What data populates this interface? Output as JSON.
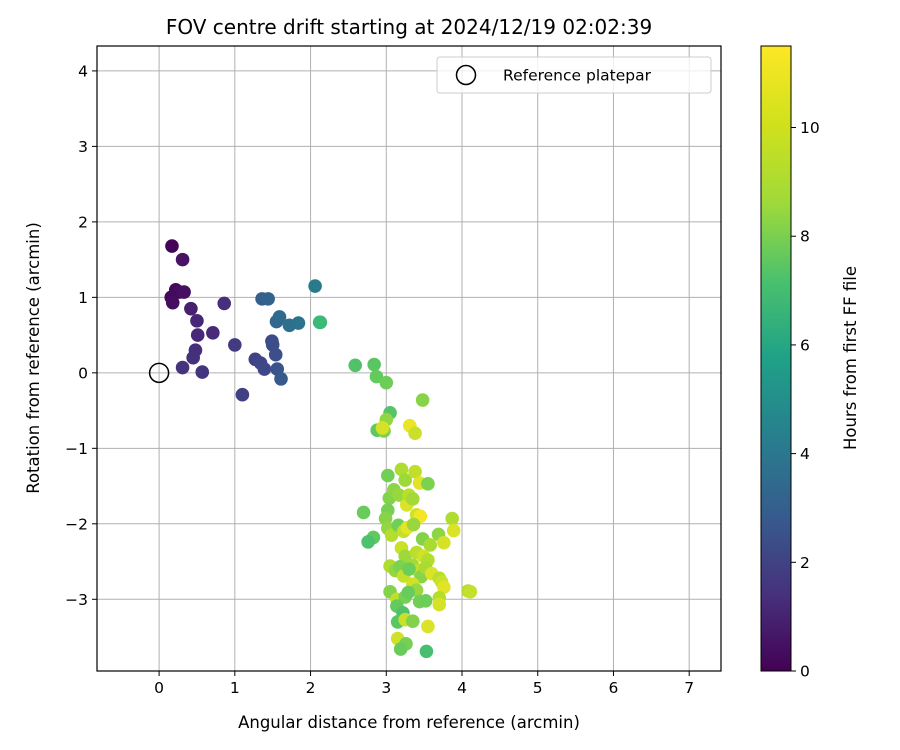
{
  "chart_data": {
    "type": "scatter",
    "title": "FOV centre drift starting at 2024/12/19 02:02:39",
    "xlabel": "Angular distance from reference (arcmin)",
    "ylabel": "Rotation from reference (arcmin)",
    "xlim": [
      -0.82,
      7.42
    ],
    "ylim": [
      -3.95,
      4.33
    ],
    "xticks": [
      0,
      1,
      2,
      3,
      4,
      5,
      6,
      7
    ],
    "yticks": [
      -3,
      -2,
      -1,
      0,
      1,
      2,
      3,
      4
    ],
    "grid": true,
    "legend": {
      "position": "top-right",
      "entries": [
        "Reference platepar"
      ]
    },
    "reference": {
      "x": 0,
      "y": 0
    },
    "colorbar": {
      "label": "Hours from first FF file",
      "colormap": "viridis",
      "min": 0,
      "max": 11.5,
      "ticks": [
        0,
        2,
        4,
        6,
        8,
        10
      ]
    },
    "points": [
      {
        "x": 0.17,
        "y": 1.68,
        "c": 0.1
      },
      {
        "x": 0.31,
        "y": 1.5,
        "c": 0.6
      },
      {
        "x": 0.22,
        "y": 1.1,
        "c": 0.2
      },
      {
        "x": 0.27,
        "y": 1.07,
        "c": 0.4
      },
      {
        "x": 0.33,
        "y": 1.07,
        "c": 0.5
      },
      {
        "x": 0.16,
        "y": 1.0,
        "c": 0.3
      },
      {
        "x": 0.18,
        "y": 0.93,
        "c": 0.4
      },
      {
        "x": 0.42,
        "y": 0.85,
        "c": 1.0
      },
      {
        "x": 0.86,
        "y": 0.92,
        "c": 1.6
      },
      {
        "x": 0.5,
        "y": 0.69,
        "c": 1.2
      },
      {
        "x": 0.51,
        "y": 0.5,
        "c": 1.3
      },
      {
        "x": 0.71,
        "y": 0.53,
        "c": 1.4
      },
      {
        "x": 0.48,
        "y": 0.3,
        "c": 1.5
      },
      {
        "x": 0.45,
        "y": 0.2,
        "c": 1.6
      },
      {
        "x": 0.31,
        "y": 0.07,
        "c": 1.7
      },
      {
        "x": 0.57,
        "y": 0.01,
        "c": 1.8
      },
      {
        "x": 1.0,
        "y": 0.37,
        "c": 2.0
      },
      {
        "x": 1.1,
        "y": -0.29,
        "c": 2.2
      },
      {
        "x": 1.27,
        "y": 0.18,
        "c": 2.3
      },
      {
        "x": 1.34,
        "y": 0.13,
        "c": 2.4
      },
      {
        "x": 1.39,
        "y": 0.05,
        "c": 2.5
      },
      {
        "x": 1.49,
        "y": 0.42,
        "c": 2.6
      },
      {
        "x": 1.5,
        "y": 0.37,
        "c": 2.7
      },
      {
        "x": 1.54,
        "y": 0.24,
        "c": 2.8
      },
      {
        "x": 1.56,
        "y": 0.05,
        "c": 3.0
      },
      {
        "x": 1.61,
        "y": -0.08,
        "c": 3.2
      },
      {
        "x": 1.36,
        "y": 0.98,
        "c": 3.5
      },
      {
        "x": 1.44,
        "y": 0.98,
        "c": 3.6
      },
      {
        "x": 1.55,
        "y": 0.68,
        "c": 3.8
      },
      {
        "x": 1.59,
        "y": 0.74,
        "c": 3.9
      },
      {
        "x": 1.72,
        "y": 0.63,
        "c": 4.2
      },
      {
        "x": 1.84,
        "y": 0.66,
        "c": 4.4
      },
      {
        "x": 2.06,
        "y": 1.15,
        "c": 4.7
      },
      {
        "x": 2.12,
        "y": 0.67,
        "c": 7.6
      },
      {
        "x": 2.13,
        "y": 0.67,
        "c": 7.8
      },
      {
        "x": 2.59,
        "y": 0.1,
        "c": 8.3
      },
      {
        "x": 2.84,
        "y": 0.11,
        "c": 8.5
      },
      {
        "x": 2.87,
        "y": -0.05,
        "c": 8.7
      },
      {
        "x": 3.0,
        "y": -0.13,
        "c": 8.9
      },
      {
        "x": 3.05,
        "y": -0.53,
        "c": 8.4
      },
      {
        "x": 2.88,
        "y": -0.76,
        "c": 8.6
      },
      {
        "x": 2.97,
        "y": -0.77,
        "c": 9.2
      },
      {
        "x": 3.0,
        "y": -0.62,
        "c": 9.6
      },
      {
        "x": 2.95,
        "y": -0.73,
        "c": 10.8
      },
      {
        "x": 3.31,
        "y": -0.7,
        "c": 11.2
      },
      {
        "x": 3.38,
        "y": -0.8,
        "c": 10.6
      },
      {
        "x": 3.48,
        "y": -0.36,
        "c": 9.4
      },
      {
        "x": 3.02,
        "y": -1.36,
        "c": 9.0
      },
      {
        "x": 3.04,
        "y": -1.66,
        "c": 9.3
      },
      {
        "x": 3.1,
        "y": -1.55,
        "c": 9.5
      },
      {
        "x": 3.2,
        "y": -1.28,
        "c": 10.1
      },
      {
        "x": 3.25,
        "y": -1.42,
        "c": 9.8
      },
      {
        "x": 3.38,
        "y": -1.31,
        "c": 10.4
      },
      {
        "x": 3.44,
        "y": -1.46,
        "c": 11.0
      },
      {
        "x": 3.55,
        "y": -1.47,
        "c": 9.2
      },
      {
        "x": 3.17,
        "y": -1.62,
        "c": 9.7
      },
      {
        "x": 3.27,
        "y": -1.75,
        "c": 10.9
      },
      {
        "x": 3.3,
        "y": -1.62,
        "c": 10.3
      },
      {
        "x": 3.35,
        "y": -1.67,
        "c": 9.9
      },
      {
        "x": 3.4,
        "y": -1.88,
        "c": 10.7
      },
      {
        "x": 3.45,
        "y": -1.9,
        "c": 11.3
      },
      {
        "x": 3.02,
        "y": -1.82,
        "c": 9.1
      },
      {
        "x": 2.99,
        "y": -1.93,
        "c": 9.4
      },
      {
        "x": 2.7,
        "y": -1.85,
        "c": 8.8
      },
      {
        "x": 2.83,
        "y": -2.18,
        "c": 8.6
      },
      {
        "x": 2.76,
        "y": -2.24,
        "c": 8.2
      },
      {
        "x": 3.02,
        "y": -2.06,
        "c": 9.6
      },
      {
        "x": 3.07,
        "y": -2.15,
        "c": 10.2
      },
      {
        "x": 3.16,
        "y": -2.02,
        "c": 9.0
      },
      {
        "x": 3.23,
        "y": -2.1,
        "c": 10.5
      },
      {
        "x": 3.28,
        "y": -2.05,
        "c": 11.1
      },
      {
        "x": 3.36,
        "y": -2.01,
        "c": 9.7
      },
      {
        "x": 3.48,
        "y": -2.2,
        "c": 9.3
      },
      {
        "x": 3.58,
        "y": -2.28,
        "c": 10.0
      },
      {
        "x": 3.69,
        "y": -2.14,
        "c": 9.5
      },
      {
        "x": 3.76,
        "y": -2.25,
        "c": 10.8
      },
      {
        "x": 3.87,
        "y": -1.93,
        "c": 10.1
      },
      {
        "x": 3.89,
        "y": -2.09,
        "c": 10.9
      },
      {
        "x": 3.2,
        "y": -2.32,
        "c": 10.6
      },
      {
        "x": 3.25,
        "y": -2.43,
        "c": 9.8
      },
      {
        "x": 3.4,
        "y": -2.38,
        "c": 10.3
      },
      {
        "x": 3.49,
        "y": -2.43,
        "c": 10.7
      },
      {
        "x": 3.55,
        "y": -2.48,
        "c": 10.2
      },
      {
        "x": 3.35,
        "y": -2.55,
        "c": 9.9
      },
      {
        "x": 3.42,
        "y": -2.62,
        "c": 10.4
      },
      {
        "x": 3.05,
        "y": -2.56,
        "c": 10.1
      },
      {
        "x": 3.12,
        "y": -2.62,
        "c": 9.6
      },
      {
        "x": 3.18,
        "y": -2.57,
        "c": 9.2
      },
      {
        "x": 3.23,
        "y": -2.69,
        "c": 10.5
      },
      {
        "x": 3.3,
        "y": -2.6,
        "c": 8.9
      },
      {
        "x": 3.46,
        "y": -2.7,
        "c": 9.4
      },
      {
        "x": 3.52,
        "y": -2.58,
        "c": 10.0
      },
      {
        "x": 3.6,
        "y": -2.66,
        "c": 10.9
      },
      {
        "x": 3.7,
        "y": -2.72,
        "c": 10.3
      },
      {
        "x": 3.73,
        "y": -2.77,
        "c": 10.6
      },
      {
        "x": 3.76,
        "y": -2.84,
        "c": 11.0
      },
      {
        "x": 3.35,
        "y": -2.8,
        "c": 10.7
      },
      {
        "x": 3.4,
        "y": -2.88,
        "c": 9.7
      },
      {
        "x": 3.05,
        "y": -2.9,
        "c": 9.3
      },
      {
        "x": 3.14,
        "y": -3.0,
        "c": 10.4
      },
      {
        "x": 3.25,
        "y": -2.97,
        "c": 9.1
      },
      {
        "x": 3.29,
        "y": -2.91,
        "c": 8.8
      },
      {
        "x": 3.44,
        "y": -3.03,
        "c": 9.0
      },
      {
        "x": 3.52,
        "y": -3.02,
        "c": 8.9
      },
      {
        "x": 3.7,
        "y": -2.98,
        "c": 10.2
      },
      {
        "x": 3.7,
        "y": -3.07,
        "c": 10.8
      },
      {
        "x": 4.08,
        "y": -2.89,
        "c": 10.2
      },
      {
        "x": 4.11,
        "y": -2.9,
        "c": 10.5
      },
      {
        "x": 3.14,
        "y": -3.09,
        "c": 8.7
      },
      {
        "x": 3.22,
        "y": -3.18,
        "c": 8.3
      },
      {
        "x": 3.15,
        "y": -3.3,
        "c": 8.5
      },
      {
        "x": 3.25,
        "y": -3.27,
        "c": 10.6
      },
      {
        "x": 3.35,
        "y": -3.29,
        "c": 9.3
      },
      {
        "x": 3.55,
        "y": -3.36,
        "c": 10.9
      },
      {
        "x": 3.15,
        "y": -3.52,
        "c": 10.7
      },
      {
        "x": 3.26,
        "y": -3.59,
        "c": 9.1
      },
      {
        "x": 3.19,
        "y": -3.66,
        "c": 8.8
      },
      {
        "x": 3.53,
        "y": -3.69,
        "c": 8.1
      }
    ]
  }
}
